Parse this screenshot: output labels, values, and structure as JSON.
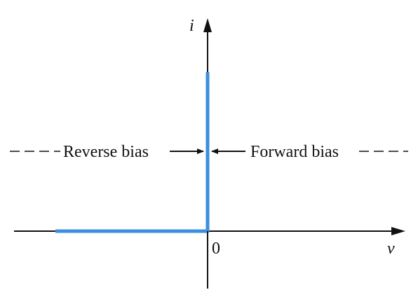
{
  "diagram": {
    "labels": {
      "y_axis": "i",
      "x_axis": "v",
      "origin": "0",
      "reverse_bias": "Reverse bias",
      "forward_bias": "Forward bias"
    },
    "colors": {
      "curve": "#3b8ee0",
      "axes": "#111111",
      "text": "#111111"
    }
  }
}
